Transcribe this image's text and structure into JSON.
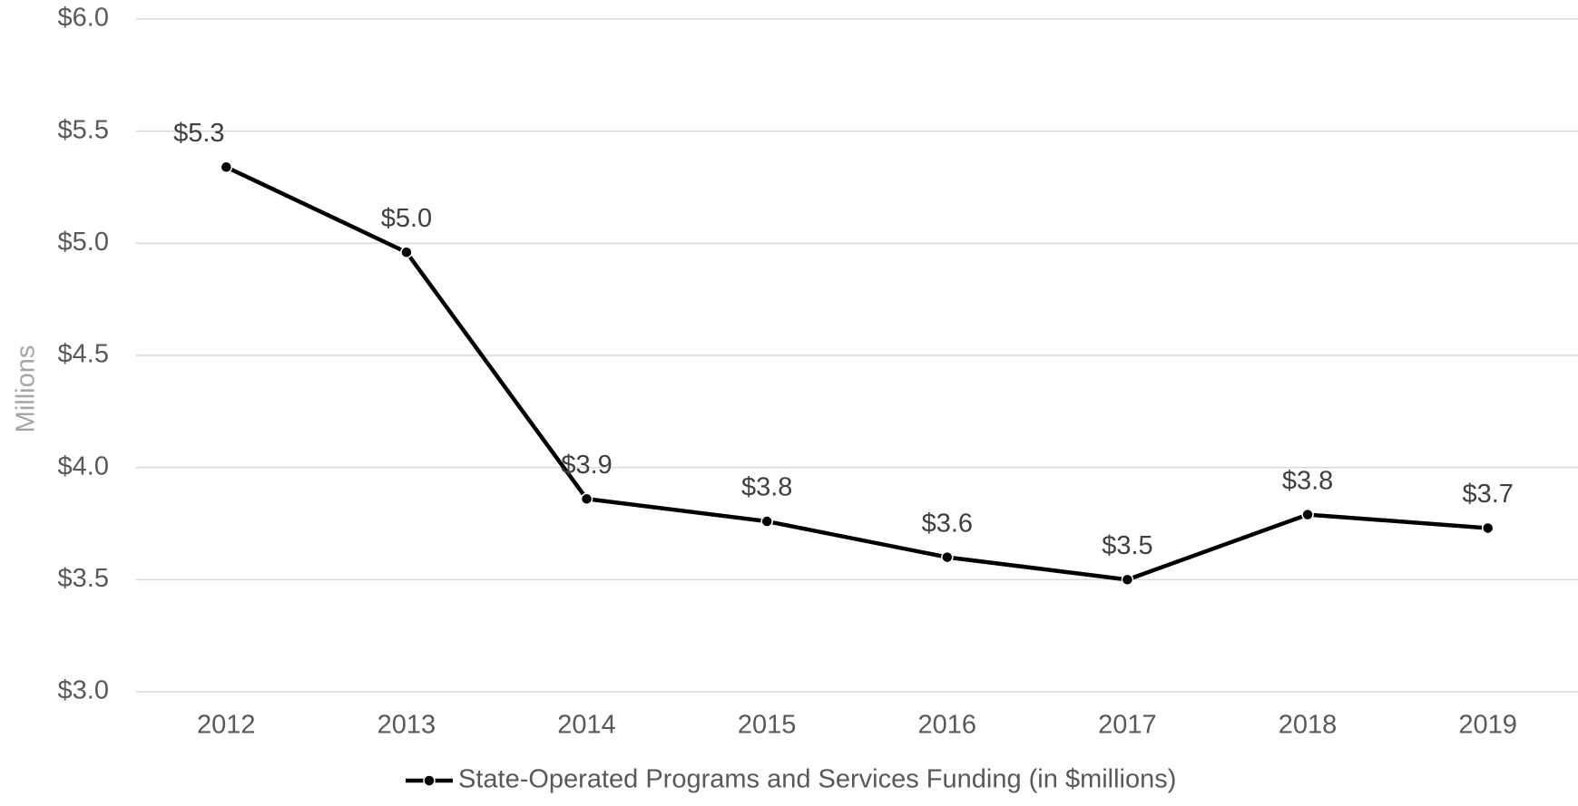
{
  "chart_data": {
    "type": "line",
    "y_label": "Millions",
    "categories": [
      "2012",
      "2013",
      "2014",
      "2015",
      "2016",
      "2017",
      "2018",
      "2019"
    ],
    "series": [
      {
        "name": "State-Operated Programs and Services Funding (in $millions)",
        "color": "#000000",
        "values": [
          5.34,
          4.96,
          3.86,
          3.76,
          3.6,
          3.5,
          3.79,
          3.73
        ],
        "value_labels": [
          "$5.3",
          "$5.0",
          "$3.9",
          "$3.8",
          "$3.6",
          "$3.5",
          "$3.8",
          "$3.7"
        ]
      }
    ],
    "ylim": [
      3,
      6
    ],
    "yticks": [
      {
        "value": 3,
        "label": "$3.0"
      },
      {
        "value": 3.5,
        "label": "$3.5"
      },
      {
        "value": 4,
        "label": "$4.0"
      },
      {
        "value": 4.5,
        "label": "$4.5"
      },
      {
        "value": 5,
        "label": "$5.0"
      },
      {
        "value": 5.5,
        "label": "$5.5"
      },
      {
        "value": 6,
        "label": "$6.0"
      }
    ],
    "grid": true,
    "legend": "bottom"
  }
}
